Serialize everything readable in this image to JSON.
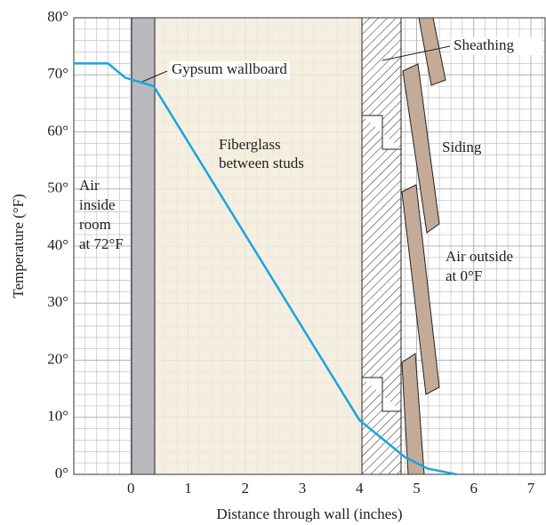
{
  "chart_data": {
    "type": "line",
    "x_label": "Distance through wall (inches)",
    "y_label": "Temperature (°F)",
    "x": [
      -1,
      -0.4,
      -0.1,
      0.4,
      4,
      4.8,
      5.2,
      5.7
    ],
    "values": [
      72,
      72,
      69.5,
      68,
      9.5,
      3,
      1,
      0
    ],
    "color": "#1aa3e0",
    "xlim": [
      -1,
      7.25
    ],
    "ylim": [
      0,
      80
    ],
    "xticks": [
      0,
      1,
      2,
      3,
      4,
      5,
      6,
      7
    ],
    "yticks": [
      {
        "value": 0,
        "label": "0°"
      },
      {
        "value": 10,
        "label": "10°"
      },
      {
        "value": 20,
        "label": "20°"
      },
      {
        "value": 30,
        "label": "30°"
      },
      {
        "value": 40,
        "label": "40°"
      },
      {
        "value": 50,
        "label": "50°"
      },
      {
        "value": 60,
        "label": "60°"
      },
      {
        "value": 70,
        "label": "70°"
      },
      {
        "value": 80,
        "label": "80°"
      }
    ],
    "grid": true,
    "annotations": [
      {
        "lines": [
          "Gypsum wallboard"
        ]
      },
      {
        "lines": [
          "Fiberglass",
          "between studs"
        ]
      },
      {
        "lines": [
          "Sheathing"
        ]
      },
      {
        "lines": [
          "Siding"
        ]
      },
      {
        "lines": [
          "Air",
          "inside",
          "room",
          "at 72°F"
        ]
      },
      {
        "lines": [
          "Air outside",
          "at 0°F"
        ]
      }
    ]
  }
}
